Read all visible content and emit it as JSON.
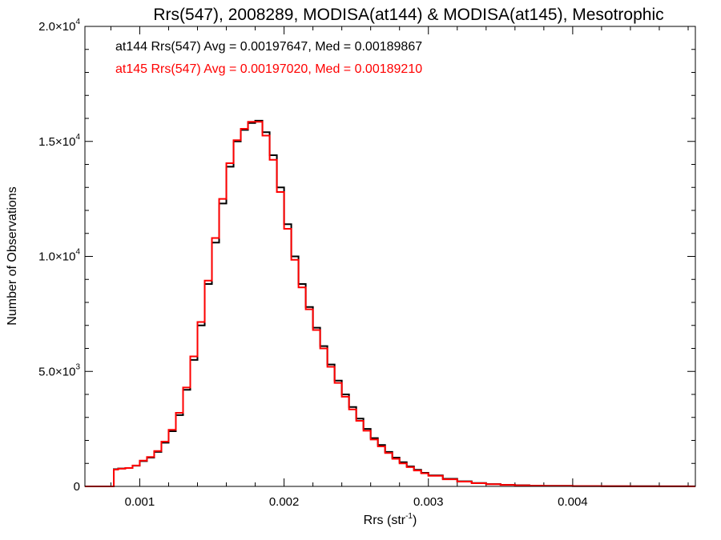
{
  "chart_data": {
    "type": "line",
    "step": true,
    "title": "Rrs(547), 2008289, MODISA(at144) & MODISA(at145), Mesotrophic",
    "xlabel": "Rrs (str",
    "xlabel_sup": "-1",
    "xlabel_close": ")",
    "ylabel": "Number of Observations",
    "xlim": [
      0.00062,
      0.00485
    ],
    "ylim": [
      0,
      20000
    ],
    "xticks": [
      {
        "value": 0.001,
        "label": "0.001"
      },
      {
        "value": 0.002,
        "label": "0.002"
      },
      {
        "value": 0.003,
        "label": "0.003"
      },
      {
        "value": 0.004,
        "label": "0.004"
      }
    ],
    "yticks": [
      {
        "value": 0,
        "base": "0",
        "exp": ""
      },
      {
        "value": 5000,
        "base": "5.0×10",
        "exp": "3"
      },
      {
        "value": 10000,
        "base": "1.0×10",
        "exp": "4"
      },
      {
        "value": 15000,
        "base": "1.5×10",
        "exp": "4"
      },
      {
        "value": 20000,
        "base": "2.0×10",
        "exp": "4"
      }
    ],
    "annotations": [
      {
        "text": "at144 Rrs(547) Avg = 0.00197647, Med = 0.00189867",
        "color": "#000000"
      },
      {
        "text": "at145 Rrs(547) Avg = 0.00197020, Med = 0.00189210",
        "color": "#ff0000"
      }
    ],
    "series": [
      {
        "color": "#000000",
        "x": [
          0.00062,
          0.0008,
          0.00082,
          0.00085,
          0.0009,
          0.00095,
          0.001,
          0.00105,
          0.0011,
          0.00115,
          0.0012,
          0.00125,
          0.0013,
          0.00135,
          0.0014,
          0.00145,
          0.0015,
          0.00155,
          0.0016,
          0.00165,
          0.0017,
          0.00175,
          0.0018,
          0.00185,
          0.0019,
          0.00195,
          0.002,
          0.00205,
          0.0021,
          0.00215,
          0.0022,
          0.00225,
          0.0023,
          0.00235,
          0.0024,
          0.00245,
          0.0025,
          0.00255,
          0.0026,
          0.00265,
          0.0027,
          0.00275,
          0.0028,
          0.00285,
          0.0029,
          0.00295,
          0.003,
          0.0031,
          0.0032,
          0.0033,
          0.0034,
          0.0035,
          0.0036,
          0.0037,
          0.0038,
          0.004,
          0.0042,
          0.0044,
          0.0046,
          0.0048
        ],
        "y": [
          0,
          0,
          750,
          780,
          800,
          900,
          1100,
          1250,
          1500,
          1900,
          2400,
          3100,
          4200,
          5500,
          7000,
          8800,
          10600,
          12300,
          13900,
          15000,
          15500,
          15800,
          15900,
          15400,
          14400,
          13000,
          11400,
          10000,
          8800,
          7800,
          6900,
          6100,
          5300,
          4600,
          4000,
          3450,
          2950,
          2500,
          2100,
          1800,
          1500,
          1250,
          1050,
          870,
          720,
          590,
          480,
          330,
          220,
          150,
          100,
          70,
          50,
          35,
          25,
          15,
          10,
          8,
          5,
          3
        ]
      },
      {
        "color": "#ff0000",
        "x": [
          0.00062,
          0.0008,
          0.00082,
          0.00085,
          0.0009,
          0.00095,
          0.001,
          0.00105,
          0.0011,
          0.00115,
          0.0012,
          0.00125,
          0.0013,
          0.00135,
          0.0014,
          0.00145,
          0.0015,
          0.00155,
          0.0016,
          0.00165,
          0.0017,
          0.00175,
          0.0018,
          0.00185,
          0.0019,
          0.00195,
          0.002,
          0.00205,
          0.0021,
          0.00215,
          0.0022,
          0.00225,
          0.0023,
          0.00235,
          0.0024,
          0.00245,
          0.0025,
          0.00255,
          0.0026,
          0.00265,
          0.0027,
          0.00275,
          0.0028,
          0.00285,
          0.0029,
          0.00295,
          0.003,
          0.0031,
          0.0032,
          0.0033,
          0.0034,
          0.0035,
          0.0036,
          0.0037,
          0.0038,
          0.004,
          0.0042,
          0.0044,
          0.0046,
          0.0048
        ],
        "y": [
          0,
          0,
          730,
          770,
          800,
          910,
          1120,
          1280,
          1540,
          1950,
          2460,
          3200,
          4300,
          5650,
          7150,
          8950,
          10800,
          12500,
          14050,
          15050,
          15550,
          15850,
          15850,
          15250,
          14200,
          12800,
          11200,
          9850,
          8650,
          7700,
          6800,
          6000,
          5200,
          4500,
          3900,
          3350,
          2850,
          2420,
          2040,
          1740,
          1450,
          1200,
          1000,
          840,
          690,
          570,
          460,
          310,
          210,
          140,
          95,
          65,
          45,
          32,
          22,
          13,
          9,
          6,
          4,
          2
        ]
      }
    ]
  }
}
